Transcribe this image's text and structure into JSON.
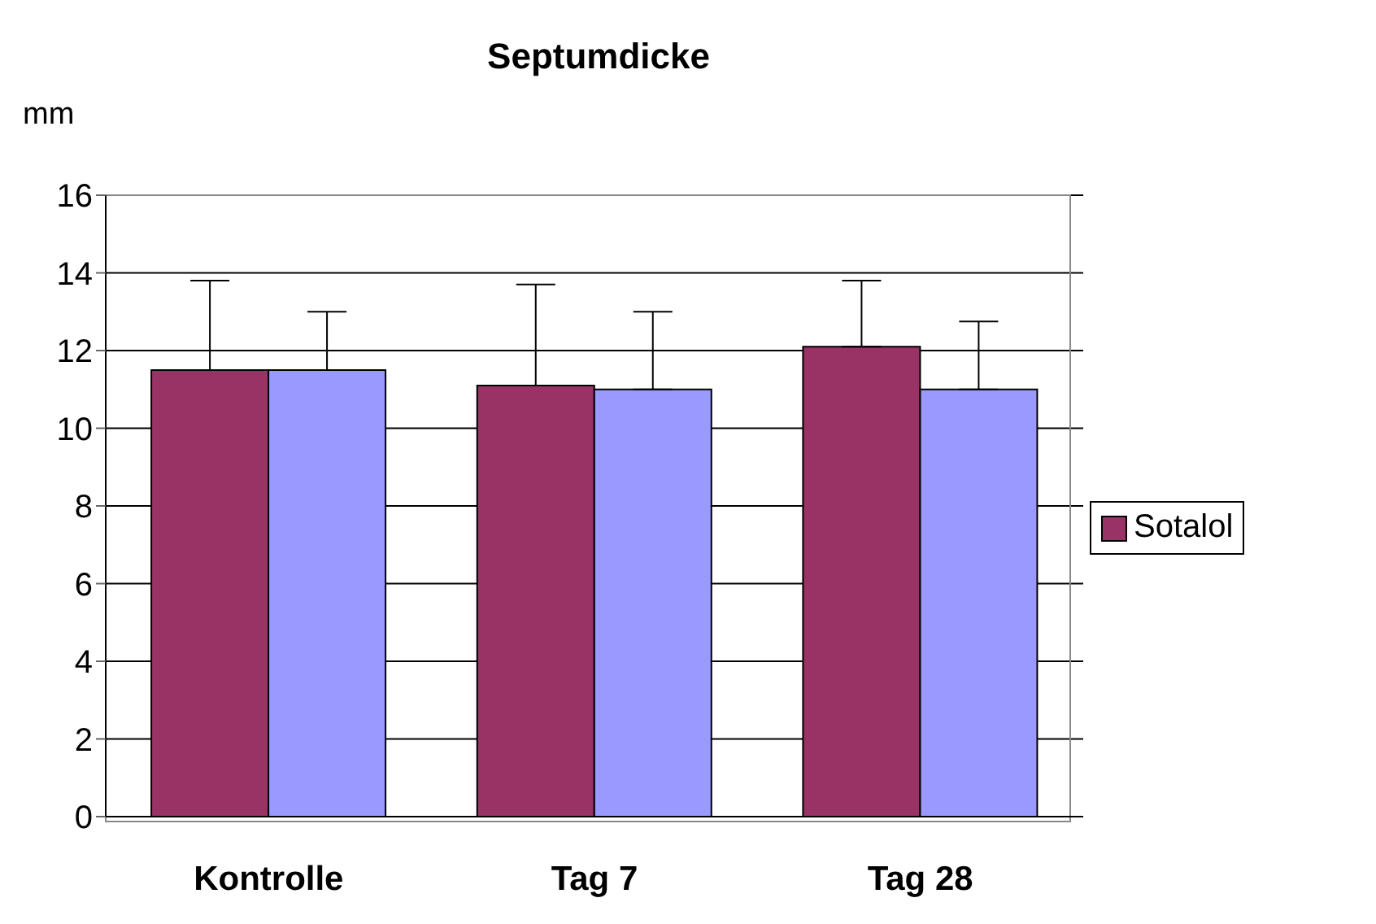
{
  "chart_data": {
    "type": "bar",
    "title": "Septumdicke",
    "ylabel": "mm",
    "categories": [
      "Kontrolle",
      "Tag 7",
      "Tag 28"
    ],
    "series": [
      {
        "name": "Sotalol",
        "color": "#993366",
        "values": [
          11.5,
          11.1,
          12.1
        ],
        "errors": [
          [
            11.5,
            13.8
          ],
          [
            11.1,
            13.7
          ],
          [
            12.1,
            13.8
          ]
        ]
      },
      {
        "color": "#9999ff",
        "values": [
          11.5,
          11.0,
          11.0
        ],
        "errors": [
          [
            11.5,
            13.0
          ],
          [
            11.0,
            13.0
          ],
          [
            11.0,
            12.75
          ]
        ]
      }
    ],
    "ylim": [
      0,
      16
    ],
    "yticks": [
      0,
      2,
      4,
      6,
      8,
      10,
      12,
      14,
      16
    ],
    "grid": "y",
    "legend": "right"
  }
}
